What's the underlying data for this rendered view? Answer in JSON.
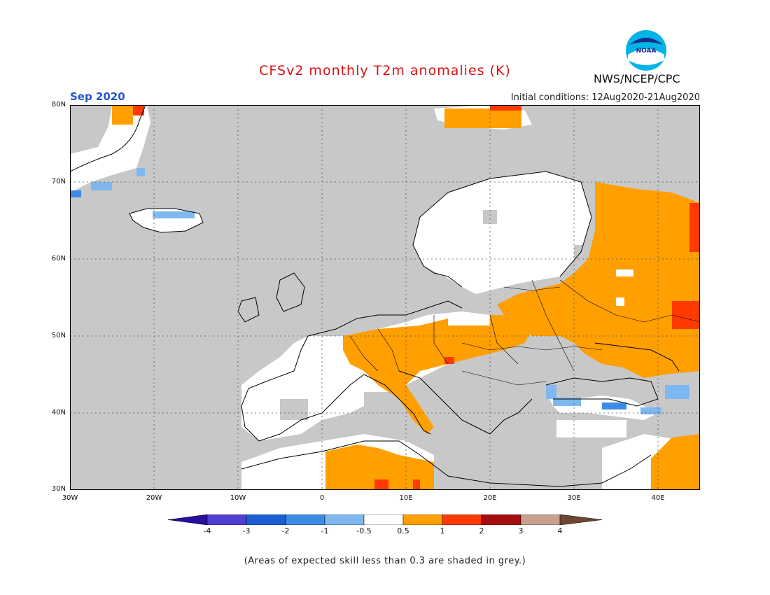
{
  "header": {
    "title": "CFSv2 monthly T2m anomalies (K)",
    "month": "Sep 2020",
    "initial_conditions": "Initial conditions: 12Aug2020-21Aug2020",
    "agency": "NWS/NCEP/CPC",
    "logo_text": "NOAA"
  },
  "map": {
    "lat_labels": [
      "80N",
      "70N",
      "60N",
      "50N",
      "40N",
      "30N"
    ],
    "lon_labels": [
      "30W",
      "20W",
      "10W",
      "0",
      "10E",
      "20E",
      "30E",
      "40E"
    ],
    "colors": {
      "skill_grey": "#c8c8c8",
      "neutral": "#ffffff",
      "warm_05": "#ff9f00",
      "warm_1": "#ff3a00",
      "cool_05": "#7fb8f0",
      "cool_1": "#3c8ce6"
    }
  },
  "colorbar": {
    "labels": [
      "-4",
      "-3",
      "-2",
      "-1",
      "-0.5",
      "0.5",
      "1",
      "2",
      "3",
      "4"
    ],
    "colors": [
      "#2a0e9e",
      "#4f3fd0",
      "#1c5fd4",
      "#3c8ce6",
      "#7fb8f0",
      "#ffffff",
      "#ff9f00",
      "#ff3a00",
      "#a50e0e",
      "#c8a090",
      "#6e4632"
    ]
  },
  "footnote": "(Areas of expected skill less than 0.3 are shaded in grey.)"
}
